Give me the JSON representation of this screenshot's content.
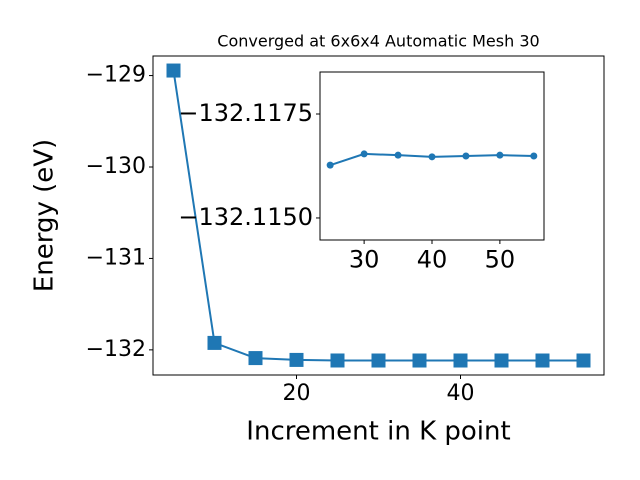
{
  "chart_data": [
    {
      "type": "line",
      "title": "Converged at 6x6x4 Automatic Mesh 30",
      "x_label": "Increment in K point",
      "y_label": "Energy (eV)",
      "x": [
        5,
        10,
        15,
        20,
        25,
        30,
        35,
        40,
        45,
        50,
        55
      ],
      "series": [
        {
          "color": "#1f77b4",
          "marker": "square",
          "values": [
            -128.945,
            -131.924,
            -132.09,
            -132.11,
            -132.11627,
            -132.11654,
            -132.11651,
            -132.11647,
            -132.11649,
            -132.11651,
            -132.11649
          ]
        }
      ],
      "xlim": [
        2.5,
        57.5
      ],
      "xticks": [
        20,
        40
      ],
      "ylim": [
        -132.275,
        -128.786
      ],
      "yticks": [
        -132,
        -131,
        -130,
        -129
      ]
    },
    {
      "type": "line",
      "x": [
        25,
        30,
        35,
        40,
        45,
        50,
        55
      ],
      "series": [
        {
          "color": "#1f77b4",
          "marker": "circle",
          "values": [
            -132.11627,
            -132.11654,
            -132.11651,
            -132.11647,
            -132.11649,
            -132.11651,
            -132.11649
          ]
        }
      ],
      "xlim": [
        23.5,
        56.5
      ],
      "xticks": [
        30,
        40,
        50
      ],
      "ylim": [
        -132.11447,
        -132.11851
      ],
      "yticks": [
        {
          "value": -132.1175,
          "label": "−132.1175"
        },
        {
          "value": -132.115,
          "label": "−132.1150"
        }
      ]
    }
  ]
}
